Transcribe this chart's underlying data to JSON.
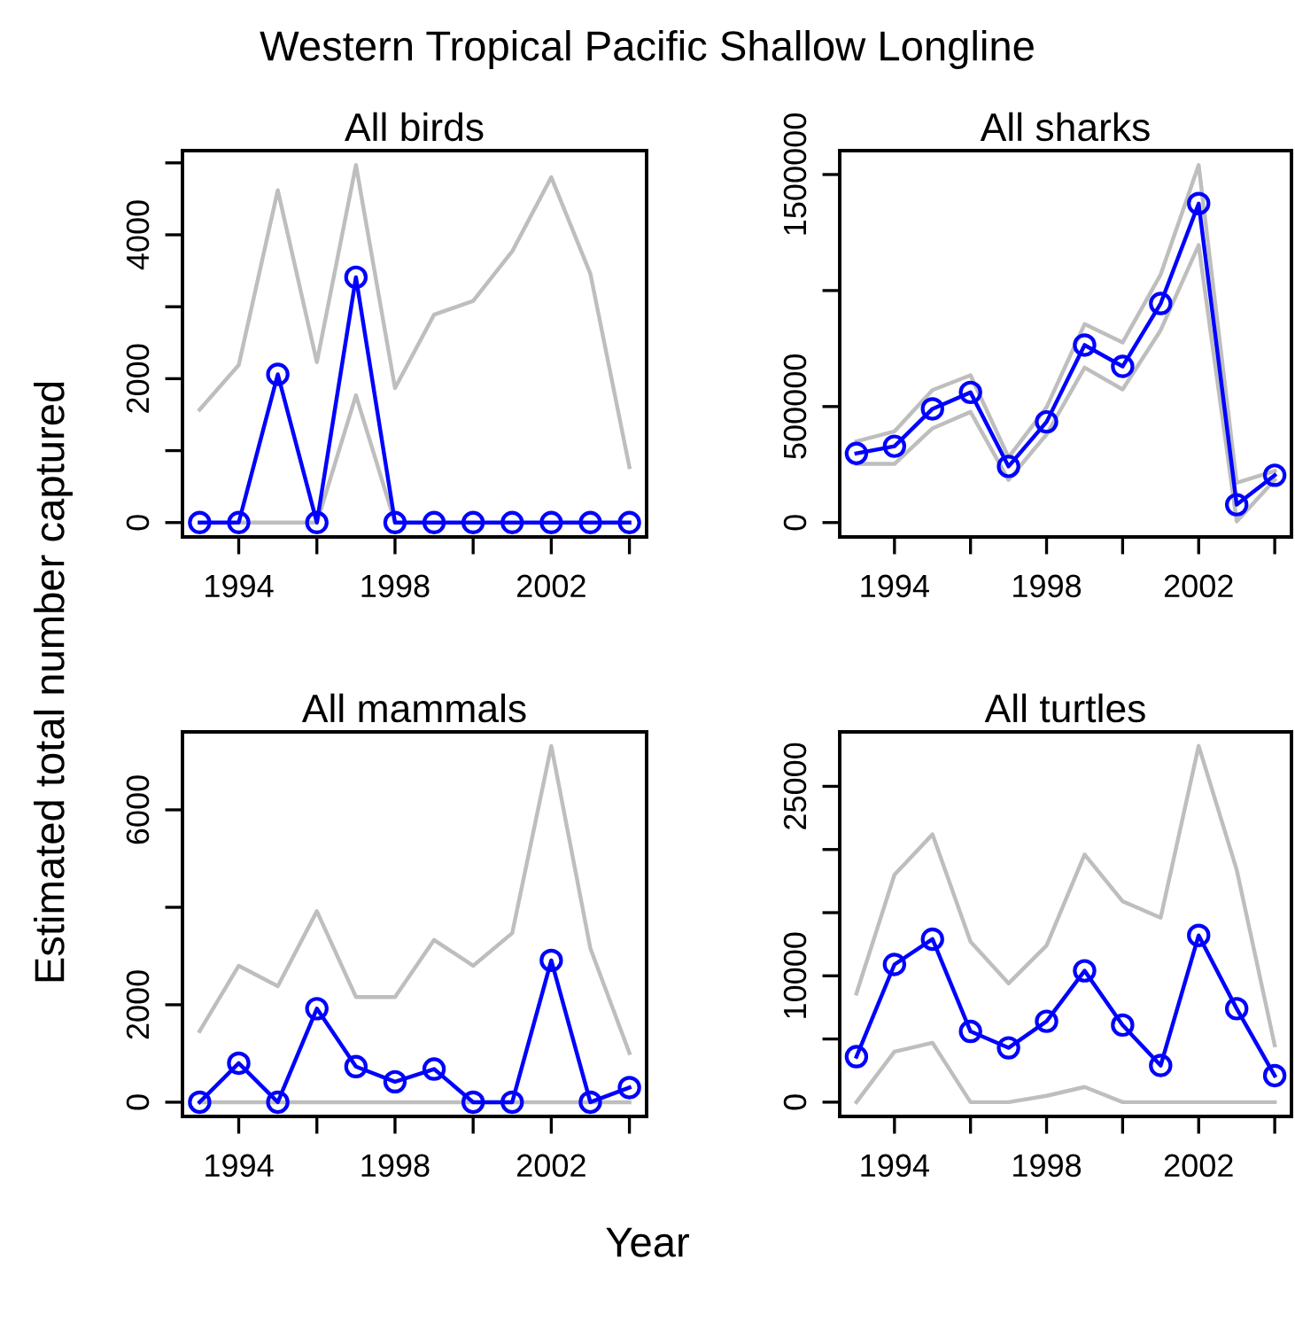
{
  "chart_data": [
    {
      "type": "line",
      "title": "All birds",
      "x": [
        1993,
        1994,
        1995,
        1996,
        1997,
        1998,
        1999,
        2000,
        2001,
        2002,
        2003,
        2004
      ],
      "xlim": [
        1992.56,
        2004.44
      ],
      "xticks": [
        1994,
        {
          "value": 1996,
          "label": null
        },
        1998,
        {
          "value": 2000,
          "label": null
        },
        2002,
        {
          "value": 2004,
          "label": null
        }
      ],
      "ylim": [
        -200,
        5170
      ],
      "yticks": [
        0,
        {
          "value": 1000,
          "label": null
        },
        2000,
        {
          "value": 3000,
          "label": null
        },
        4000,
        {
          "value": 5000,
          "label": null
        }
      ],
      "grid": false,
      "annotations": [
        "Western Tropical Pacific Shallow Longline",
        "Year",
        "Estimated total number captured"
      ],
      "series": [
        {
          "color": "#bebebe",
          "marker": "none",
          "values": [
            1570,
            2190,
            4620,
            2230,
            4970,
            1870,
            2890,
            3080,
            3770,
            4800,
            3460,
            770
          ]
        },
        {
          "color": "#bebebe",
          "marker": "none",
          "values": [
            null,
            0,
            0,
            0,
            1770,
            0,
            null,
            null,
            null,
            null,
            null,
            null
          ]
        },
        {
          "color": "#0000ff",
          "marker": "circle",
          "values": [
            0,
            0,
            2060,
            0,
            3410,
            0,
            0,
            0,
            0,
            0,
            0,
            0
          ]
        }
      ]
    },
    {
      "type": "line",
      "title": "All sharks",
      "x": [
        1993,
        1994,
        1995,
        1996,
        1997,
        1998,
        1999,
        2000,
        2001,
        2002,
        2003,
        2004
      ],
      "xlim": [
        1992.56,
        2004.44
      ],
      "xticks": [
        1994,
        {
          "value": 1996,
          "label": null
        },
        1998,
        {
          "value": 2000,
          "label": null
        },
        2002,
        {
          "value": 2004,
          "label": null
        }
      ],
      "ylim": [
        -62000,
        1603000
      ],
      "yticks": [
        0,
        500000,
        {
          "value": 1000000,
          "label": null
        },
        1500000
      ],
      "grid": false,
      "series": [
        {
          "color": "#bebebe",
          "marker": "none",
          "values": [
            350000,
            393000,
            571000,
            635000,
            281000,
            497000,
            855000,
            776000,
            1069000,
            1541000,
            171000,
            222000
          ]
        },
        {
          "color": "#bebebe",
          "marker": "none",
          "values": [
            253000,
            253000,
            406000,
            477000,
            184000,
            380000,
            668000,
            574000,
            829000,
            1196000,
            5000,
            184000
          ]
        },
        {
          "color": "#0000ff",
          "marker": "circle",
          "values": [
            298000,
            329000,
            490000,
            561000,
            242000,
            434000,
            765000,
            673000,
            944000,
            1375000,
            77000,
            204000
          ]
        }
      ]
    },
    {
      "type": "line",
      "title": "All mammals",
      "x": [
        1993,
        1994,
        1995,
        1996,
        1997,
        1998,
        1999,
        2000,
        2001,
        2002,
        2003,
        2004
      ],
      "xlim": [
        1992.56,
        2004.44
      ],
      "xticks": [
        1994,
        {
          "value": 1996,
          "label": null
        },
        1998,
        {
          "value": 2000,
          "label": null
        },
        2002,
        {
          "value": 2004,
          "label": null
        }
      ],
      "ylim": [
        -292,
        7600
      ],
      "yticks": [
        0,
        2000,
        {
          "value": 4000,
          "label": null
        },
        6000
      ],
      "grid": false,
      "series": [
        {
          "color": "#bebebe",
          "marker": "none",
          "values": [
            1460,
            2800,
            2380,
            3920,
            2160,
            2160,
            3330,
            2800,
            3470,
            7310,
            3160,
            1010
          ]
        },
        {
          "color": "#bebebe",
          "marker": "none",
          "values": [
            0,
            0,
            0,
            0,
            0,
            0,
            0,
            0,
            0,
            0,
            0,
            0
          ]
        },
        {
          "color": "#0000ff",
          "marker": "circle",
          "values": [
            0,
            800,
            0,
            1920,
            730,
            420,
            680,
            0,
            0,
            2910,
            0,
            300
          ]
        }
      ]
    },
    {
      "type": "line",
      "title": "All turtles",
      "x": [
        1993,
        1994,
        1995,
        1996,
        1997,
        1998,
        1999,
        2000,
        2001,
        2002,
        2003,
        2004
      ],
      "xlim": [
        1992.56,
        2004.44
      ],
      "xticks": [
        1994,
        {
          "value": 1996,
          "label": null
        },
        1998,
        {
          "value": 2000,
          "label": null
        },
        2002,
        {
          "value": 2004,
          "label": null
        }
      ],
      "ylim": [
        -1130,
        29310
      ],
      "yticks": [
        0,
        {
          "value": 5000,
          "label": null
        },
        10000,
        {
          "value": 15000,
          "label": null
        },
        {
          "value": 20000,
          "label": null
        },
        25000
      ],
      "grid": false,
      "series": [
        {
          "color": "#bebebe",
          "marker": "none",
          "values": [
            8600,
            18000,
            21200,
            12700,
            9400,
            12400,
            19600,
            15900,
            14600,
            28200,
            18400,
            4500
          ]
        },
        {
          "color": "#bebebe",
          "marker": "none",
          "values": [
            0,
            4000,
            4700,
            0,
            0,
            500,
            1200,
            0,
            0,
            0,
            0,
            0
          ]
        },
        {
          "color": "#0000ff",
          "marker": "circle",
          "values": [
            3600,
            10900,
            12900,
            5600,
            4300,
            6400,
            10400,
            6100,
            2900,
            13200,
            7400,
            2100
          ]
        }
      ]
    }
  ]
}
